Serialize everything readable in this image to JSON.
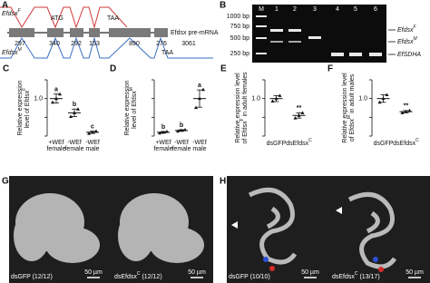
{
  "panel_a": {
    "letter": "A",
    "female_label": {
      "text": "Efdsx",
      "sup": "F"
    },
    "male_label": {
      "text": "Efdsx",
      "sup": "M"
    },
    "start_codon": "ATG",
    "stop_codon_female": "TAA",
    "stop_codon_male": "TAA",
    "pre_mrna_label": "Efdsx pre-mRNA",
    "exon_lengths": [
      "297",
      "340",
      "292",
      "153",
      "890",
      "276",
      "3061"
    ]
  },
  "panel_b": {
    "letter": "B",
    "lanes": [
      "M",
      "1",
      "2",
      "3",
      "4",
      "5",
      "6"
    ],
    "ladder": [
      "1000 bp",
      "750 bp",
      "500 bp",
      "250 bp"
    ],
    "bands": [
      {
        "text": "Efdsx",
        "sup": "F"
      },
      {
        "text": "Efdsx",
        "sup": "M"
      },
      "EfSDHA"
    ]
  },
  "chart_data": [
    {
      "type": "dot",
      "panel": "C",
      "y_label": [
        "Relative expression",
        {
          "text": "level of Efdsx",
          "sup": "F"
        }
      ],
      "categories": [
        "+WEf female",
        "-WEf female",
        "-WEf male"
      ],
      "values": [
        1.0,
        0.62,
        0.1
      ],
      "errors": [
        0.12,
        0.1,
        0.03
      ],
      "points": [
        [
          0.9,
          1.0,
          1.12
        ],
        [
          0.52,
          0.62,
          0.72
        ],
        [
          0.07,
          0.1,
          0.13
        ]
      ],
      "annotations": [
        "a",
        "b",
        "c"
      ],
      "color": "#111111",
      "ylim": [
        0,
        1.5
      ],
      "yticks": [
        0,
        0.5,
        {
          "value": 1,
          "label": "1.0"
        },
        1.5
      ]
    },
    {
      "type": "dot",
      "panel": "D",
      "y_label": [
        "Relative expression",
        {
          "text": "level of Efdsx",
          "sup": "M"
        }
      ],
      "categories": [
        "+WEf female",
        "-WEf female",
        "-WEf male"
      ],
      "values": [
        1.0,
        1.5,
        10
      ],
      "errors": [
        0.2,
        0.2,
        2.3
      ],
      "points": [
        [
          0.8,
          1.0,
          1.2
        ],
        [
          1.3,
          1.5,
          1.7
        ],
        [
          7.6,
          10,
          12.4
        ]
      ],
      "annotations": [
        "b",
        "b",
        "a"
      ],
      "color": "#111111",
      "ylim": [
        0,
        15
      ],
      "yticks": [
        0,
        5,
        10,
        15
      ]
    },
    {
      "type": "dot",
      "panel": "E",
      "y_label": [
        "Relative expression level",
        {
          "text": "of Efdsx",
          "sup": "F",
          "tail": " in adult females"
        }
      ],
      "categories": [
        "dsGFP",
        {
          "text": "dsEfdsx",
          "sup": "C"
        }
      ],
      "values": [
        1.0,
        0.55
      ],
      "errors": [
        0.08,
        0.07
      ],
      "points": [
        [
          0.93,
          1.0,
          1.08
        ],
        [
          0.48,
          0.55,
          0.62
        ]
      ],
      "annotations": [
        null,
        "**"
      ],
      "color": "#111111",
      "ylim": [
        0,
        1.5
      ],
      "yticks": [
        0,
        0.5,
        {
          "value": 1,
          "label": "1.0"
        },
        1.5
      ]
    },
    {
      "type": "dot",
      "panel": "F",
      "y_label": [
        "Relative expression level",
        {
          "text": "of Efdsx",
          "sup": "M",
          "tail": " in adult males"
        }
      ],
      "categories": [
        "dsGFP",
        {
          "text": "dsEfdsx",
          "sup": "C"
        }
      ],
      "values": [
        1.0,
        0.65
      ],
      "errors": [
        0.1,
        0.03
      ],
      "points": [
        [
          0.9,
          1.0,
          1.1
        ],
        [
          0.62,
          0.65,
          0.68
        ]
      ],
      "annotations": [
        null,
        "**"
      ],
      "color": "#111111",
      "ylim": [
        0,
        1.5
      ],
      "yticks": [
        0,
        0.5,
        {
          "value": 1,
          "label": "1.0"
        },
        1.5
      ]
    }
  ],
  "panel_g": {
    "letter": "G",
    "captions": [
      "dsGFP (12/12)",
      {
        "text": "dsEfdsx",
        "sup": "C",
        "tail": " (12/12)"
      }
    ],
    "scale_bar": "50 µm"
  },
  "panel_h": {
    "letter": "H",
    "captions": [
      "dsGFP (10/10)",
      {
        "text": "dsEfdsx",
        "sup": "C",
        "tail": " (13/17)"
      }
    ],
    "scale_bar": "50 µm"
  }
}
